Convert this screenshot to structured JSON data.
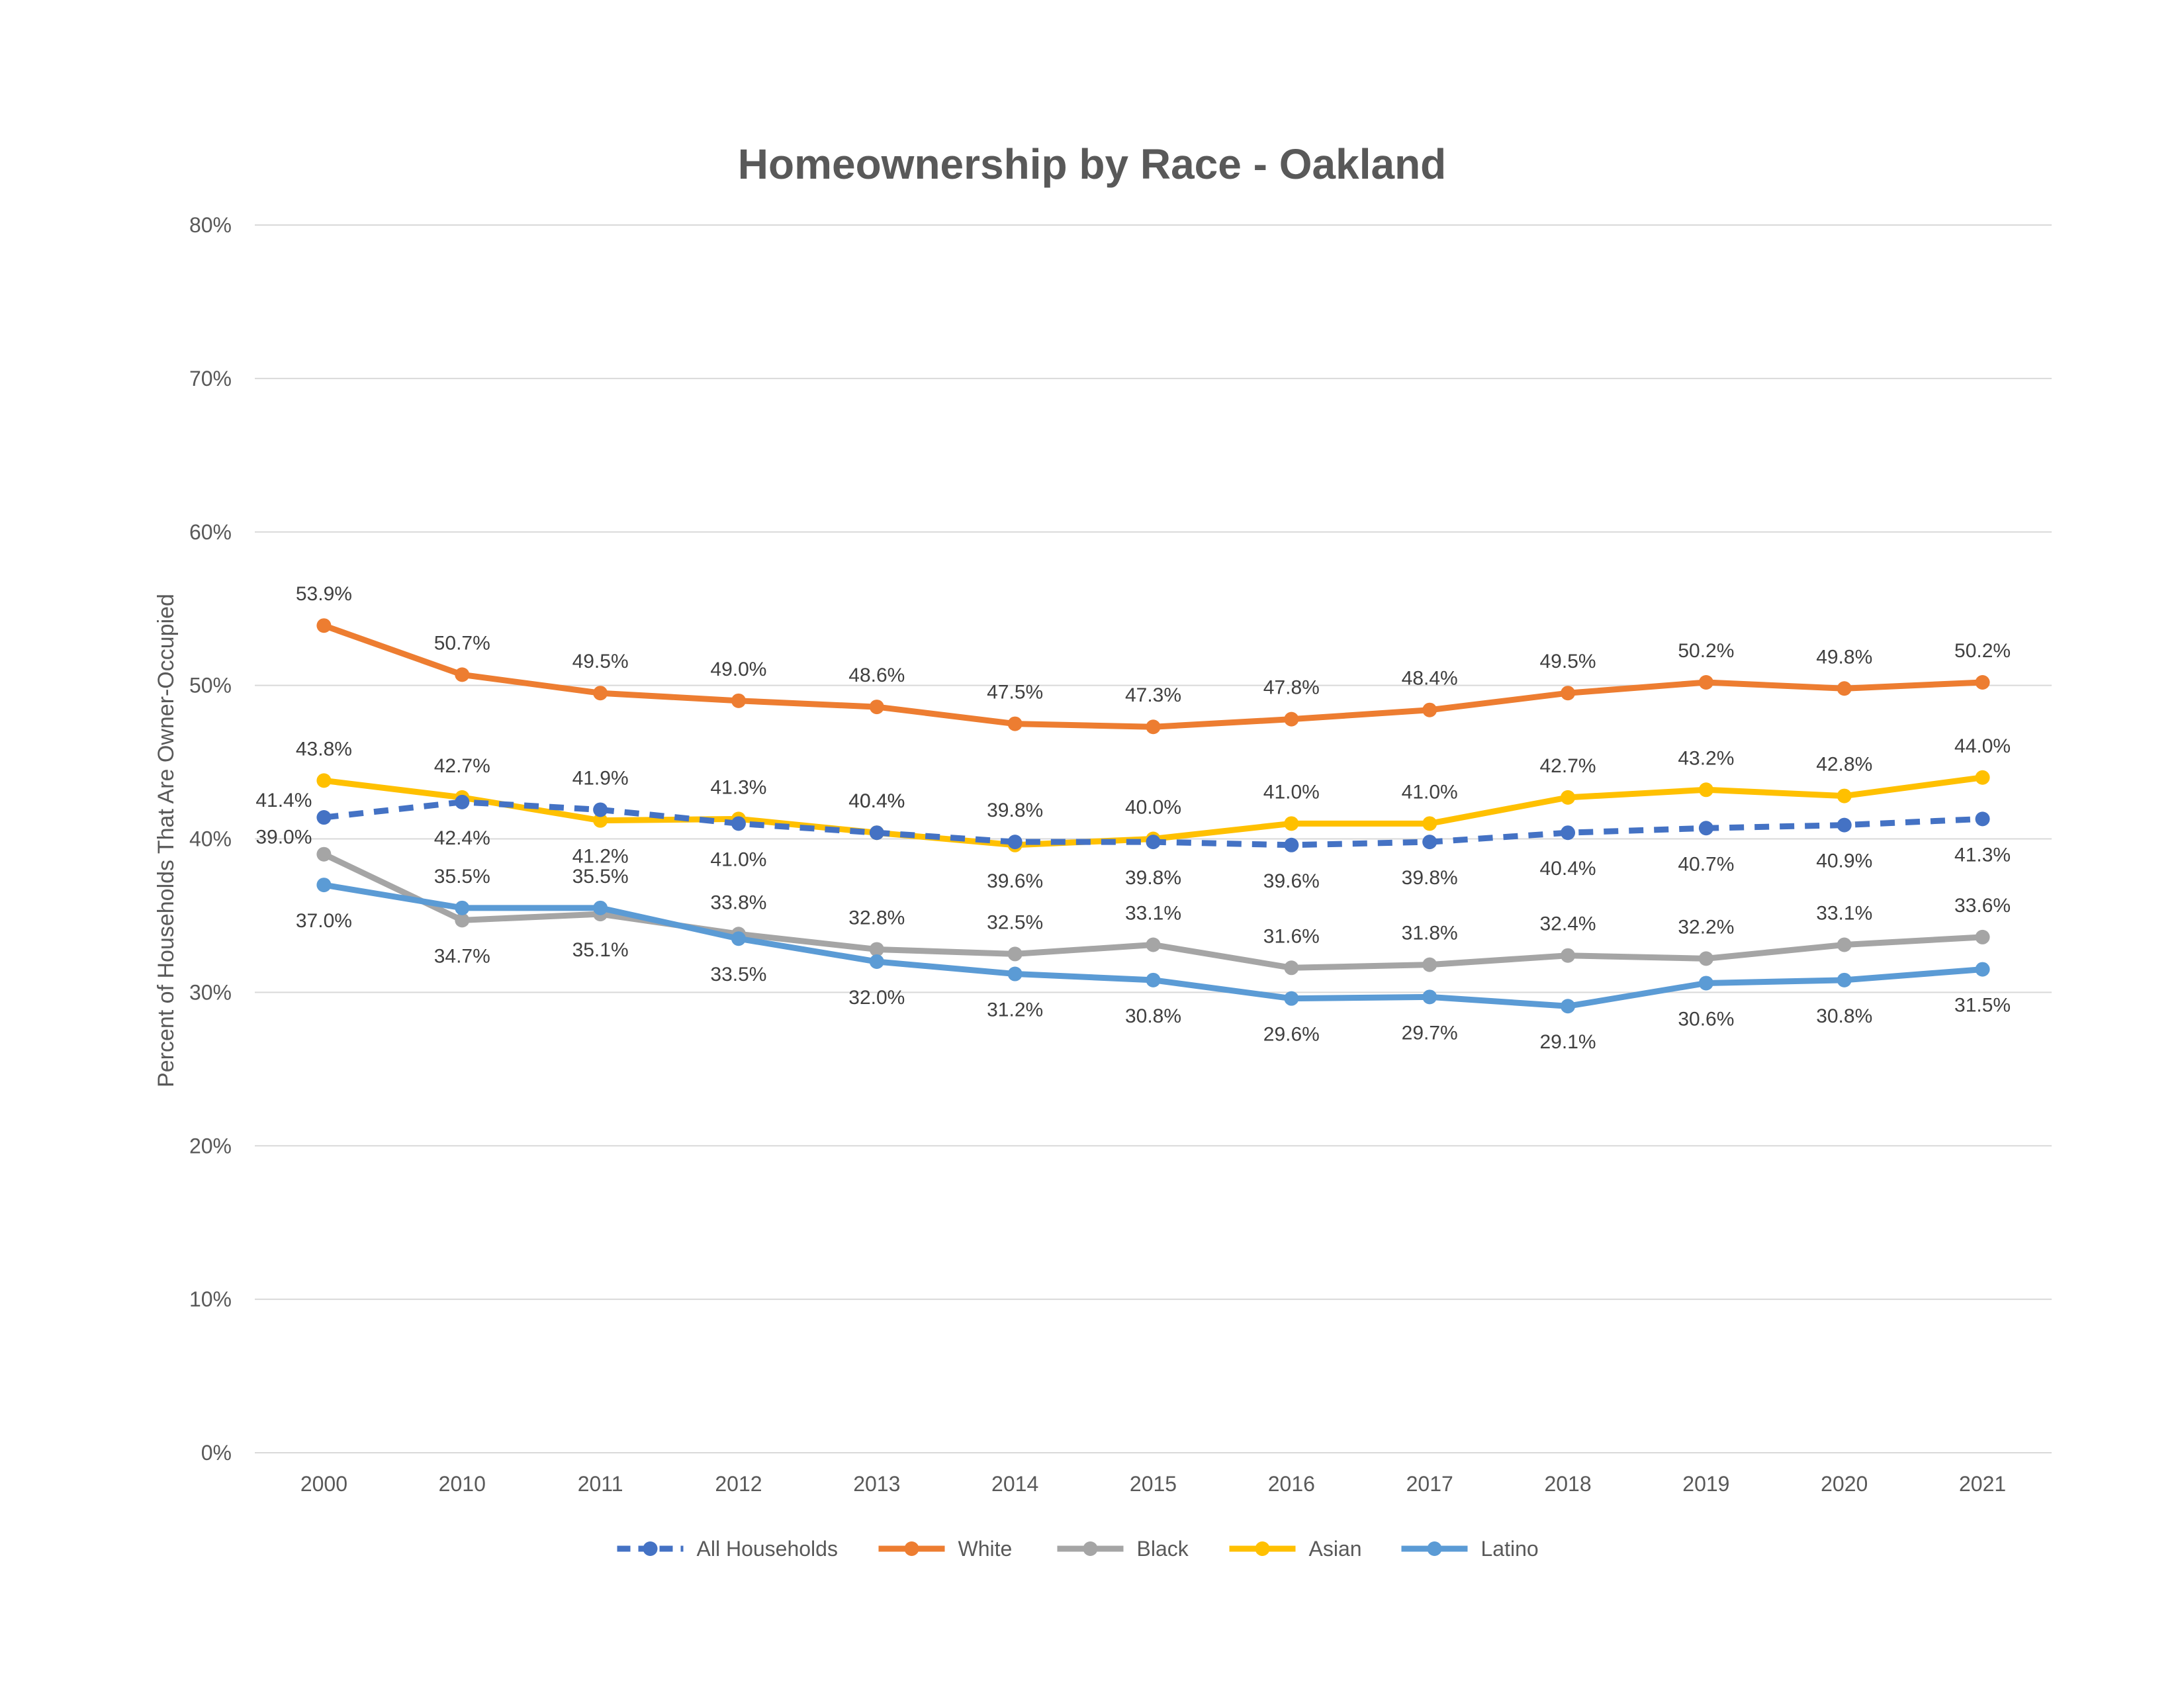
{
  "chart_data": {
    "type": "line",
    "title": "Homeownership by Race - Oakland",
    "xlabel": "",
    "ylabel": "Percent of Households That Are Owner-Occupied",
    "categories": [
      "2000",
      "2010",
      "2011",
      "2012",
      "2013",
      "2014",
      "2015",
      "2016",
      "2017",
      "2018",
      "2019",
      "2020",
      "2021"
    ],
    "ylim": [
      0,
      80
    ],
    "yticks": [
      "0%",
      "10%",
      "20%",
      "30%",
      "40%",
      "50%",
      "60%",
      "70%",
      "80%"
    ],
    "grid": true,
    "legend_position": "bottom",
    "series": [
      {
        "name": "All Households",
        "color": "#4472C4",
        "dashed": true,
        "values": [
          41.4,
          42.4,
          41.9,
          41.0,
          40.4,
          39.8,
          39.8,
          39.6,
          39.8,
          40.4,
          40.7,
          40.9,
          41.3
        ],
        "labels": [
          "41.4%",
          "42.4%",
          "41.9%",
          "41.0%",
          "40.4%",
          "39.8%",
          "39.8%",
          "39.6%",
          "39.8%",
          "40.4%",
          "40.7%",
          "40.9%",
          "41.3%"
        ]
      },
      {
        "name": "White",
        "color": "#ED7D31",
        "dashed": false,
        "values": [
          53.9,
          50.7,
          49.5,
          49.0,
          48.6,
          47.5,
          47.3,
          47.8,
          48.4,
          49.5,
          50.2,
          49.8,
          50.2
        ],
        "labels": [
          "53.9%",
          "50.7%",
          "49.5%",
          "49.0%",
          "48.6%",
          "47.5%",
          "47.3%",
          "47.8%",
          "48.4%",
          "49.5%",
          "50.2%",
          "49.8%",
          "50.2%"
        ]
      },
      {
        "name": "Black",
        "color": "#A5A5A5",
        "dashed": false,
        "values": [
          39.0,
          34.7,
          35.1,
          33.8,
          32.8,
          32.5,
          33.1,
          31.6,
          31.8,
          32.4,
          32.2,
          33.1,
          33.6
        ],
        "labels": [
          "39.0%",
          "34.7%",
          "35.1%",
          "33.8%",
          "32.8%",
          "32.5%",
          "33.1%",
          "31.6%",
          "31.8%",
          "32.4%",
          "32.2%",
          "33.1%",
          "33.6%"
        ]
      },
      {
        "name": "Asian",
        "color": "#FFC000",
        "dashed": false,
        "values": [
          43.8,
          42.7,
          41.2,
          41.3,
          40.4,
          39.6,
          40.0,
          41.0,
          41.0,
          42.7,
          43.2,
          42.8,
          44.0
        ],
        "labels": [
          "43.8%",
          "42.7%",
          "41.2%",
          "41.3%",
          "40.4%",
          "39.6%",
          "40.0%",
          "41.0%",
          "41.0%",
          "42.7%",
          "43.2%",
          "42.8%",
          "44.0%"
        ]
      },
      {
        "name": "Latino",
        "color": "#5B9BD5",
        "dashed": false,
        "values": [
          37.0,
          35.5,
          35.5,
          33.5,
          32.0,
          31.2,
          30.8,
          29.6,
          29.7,
          29.1,
          30.6,
          30.8,
          31.5
        ],
        "labels": [
          "37.0%",
          "35.5%",
          "35.5%",
          "33.5%",
          "32.0%",
          "31.2%",
          "30.8%",
          "29.6%",
          "29.7%",
          "29.1%",
          "30.6%",
          "30.8%",
          "31.5%"
        ]
      }
    ]
  }
}
